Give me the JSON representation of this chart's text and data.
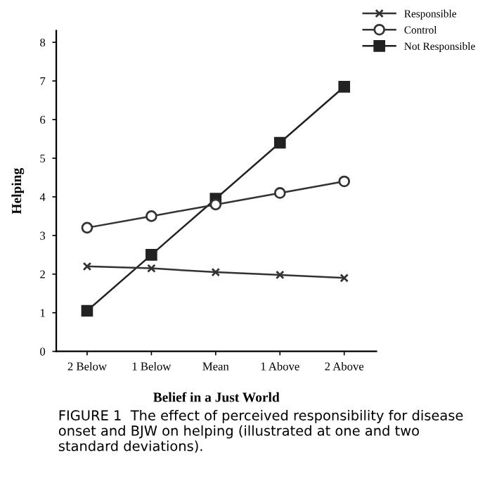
{
  "chart_data": {
    "type": "line",
    "xlabel": "Belief in a Just World",
    "ylabel": "Helping",
    "categories": [
      "2 Below",
      "1 Below",
      "Mean",
      "1 Above",
      "2 Above"
    ],
    "series": [
      {
        "name": "Responsible",
        "color": "#333333",
        "marker": "cross",
        "values": [
          2.2,
          2.15,
          2.05,
          1.98,
          1.9
        ]
      },
      {
        "name": "Control",
        "color": "#333333",
        "marker": "circle",
        "values": [
          3.2,
          3.5,
          3.8,
          4.1,
          4.4
        ]
      },
      {
        "name": "Not Responsible",
        "color": "#222222",
        "marker": "square",
        "values": [
          1.05,
          2.5,
          3.95,
          5.4,
          6.85
        ]
      }
    ],
    "ylim": [
      0,
      8.3
    ],
    "yticks": [
      0,
      1,
      2,
      3,
      4,
      5,
      6,
      7,
      8
    ],
    "grid": false,
    "legend": "top right",
    "annotations": [
      "FIGURE 1  The effect of perceived responsibility for disease onset and BJW on helping (illustrated at one and two standard deviations)."
    ]
  }
}
